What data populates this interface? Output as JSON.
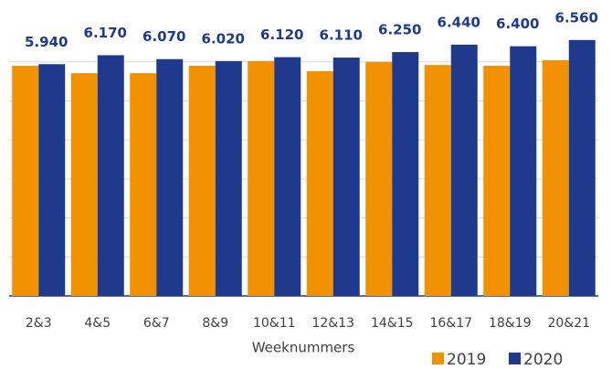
{
  "chart_data": {
    "type": "bar",
    "x_label": "Weeknummers",
    "categories": [
      "2&3",
      "4&5",
      "6&7",
      "8&9",
      "10&11",
      "12&13",
      "14&15",
      "16&17",
      "18&19",
      "20&21"
    ],
    "series": [
      {
        "name": "2019",
        "color": "#f39200",
        "values": [
          5900,
          5710,
          5710,
          5900,
          6020,
          5760,
          6000,
          5920,
          5900,
          6040
        ]
      },
      {
        "name": "2020",
        "color": "#1f3a8c",
        "values": [
          5940,
          6170,
          6070,
          6020,
          6120,
          6110,
          6250,
          6440,
          6400,
          6560
        ],
        "value_labels": [
          "5.940",
          "6.170",
          "6.070",
          "6.020",
          "6.120",
          "6.110",
          "6.250",
          "6.440",
          "6.400",
          "6.560"
        ]
      }
    ],
    "ylim": [
      0,
      7000
    ],
    "yticks": [
      0,
      1000,
      2000,
      3000,
      4000,
      5000,
      6000
    ],
    "grid": true,
    "legend": "bottom-right"
  }
}
